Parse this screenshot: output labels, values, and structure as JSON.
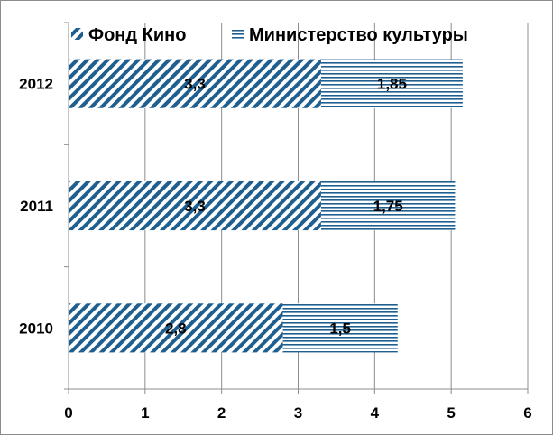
{
  "chart_data": {
    "type": "bar",
    "orientation": "horizontal",
    "stacked": true,
    "categories": [
      "2010",
      "2011",
      "2012"
    ],
    "series": [
      {
        "name": "Фонд Кино",
        "values": [
          2.8,
          3.3,
          3.3
        ],
        "color": "#1f5f8f",
        "pattern": "diagonal-hatch"
      },
      {
        "name": "Министерство культуры",
        "values": [
          1.5,
          1.75,
          1.85
        ],
        "color": "#1f5f8f",
        "pattern": "horizontal-lines"
      }
    ],
    "data_labels": [
      [
        "2,8",
        "3,3",
        "3,3"
      ],
      [
        "1,5",
        "1,75",
        "1,85"
      ]
    ],
    "xlim": [
      0,
      6
    ],
    "x_ticks": [
      "0",
      "1",
      "2",
      "3",
      "4",
      "5",
      "6"
    ],
    "grid": true,
    "legend_position": "top"
  }
}
